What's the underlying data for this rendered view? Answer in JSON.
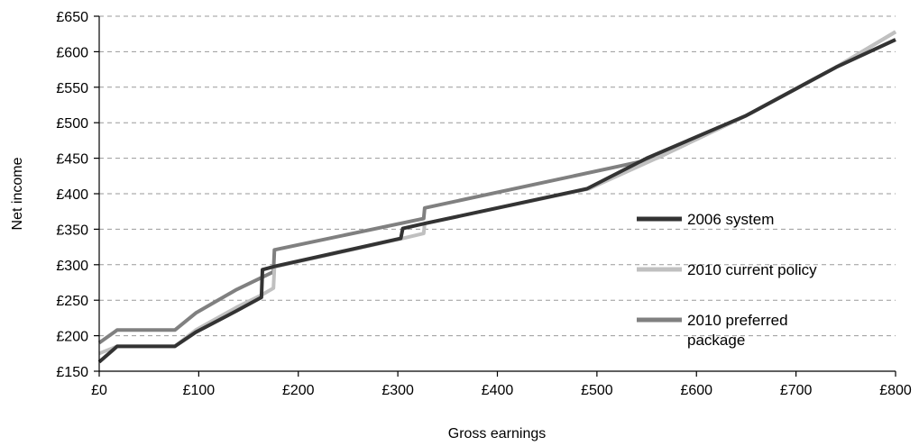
{
  "chart_data": {
    "type": "line",
    "title": "",
    "xlabel": "Gross earnings",
    "ylabel": "Net income",
    "xlim": [
      0,
      800
    ],
    "ylim": [
      150,
      650
    ],
    "xticks": [
      0,
      100,
      200,
      300,
      400,
      500,
      600,
      700,
      800
    ],
    "yticks": [
      150,
      200,
      250,
      300,
      350,
      400,
      450,
      500,
      550,
      600,
      650
    ],
    "xtick_labels": [
      "£0",
      "£100",
      "£200",
      "£300",
      "£400",
      "£500",
      "£600",
      "£700",
      "£800"
    ],
    "ytick_labels": [
      "£150",
      "£200",
      "£250",
      "£300",
      "£350",
      "£400",
      "£450",
      "£500",
      "£550",
      "£600",
      "£650"
    ],
    "grid": "horizontal dashed",
    "legend_position": "right",
    "series": [
      {
        "name": "2006 system",
        "color": "#333333",
        "x": [
          0,
          18,
          76,
          97,
          138,
          163,
          164,
          177,
          303,
          305,
          327,
          490,
          550,
          650,
          740,
          800
        ],
        "y": [
          163,
          185,
          185,
          205,
          235,
          254,
          293,
          298,
          337,
          351,
          358,
          407,
          450,
          510,
          578,
          617
        ]
      },
      {
        "name": "2010 current policy",
        "color": "#c0c0c0",
        "x": [
          0,
          18,
          76,
          97,
          138,
          164,
          175,
          176,
          305,
          326,
          327,
          492,
          560,
          650,
          740,
          800
        ],
        "y": [
          175,
          185,
          185,
          208,
          240,
          258,
          267,
          297,
          337,
          344,
          358,
          407,
          450,
          510,
          578,
          628
        ]
      },
      {
        "name": "2010 preferred package",
        "color": "#808080",
        "x": [
          0,
          18,
          76,
          97,
          138,
          175,
          176,
          326,
          327,
          560,
          650,
          740,
          800
        ],
        "y": [
          190,
          208,
          208,
          232,
          265,
          290,
          321,
          365,
          380,
          450,
          510,
          578,
          628
        ]
      }
    ],
    "legend_entries": [
      [
        "2006 system"
      ],
      [
        "2010 current policy"
      ],
      [
        "2010 preferred",
        "package"
      ]
    ]
  }
}
